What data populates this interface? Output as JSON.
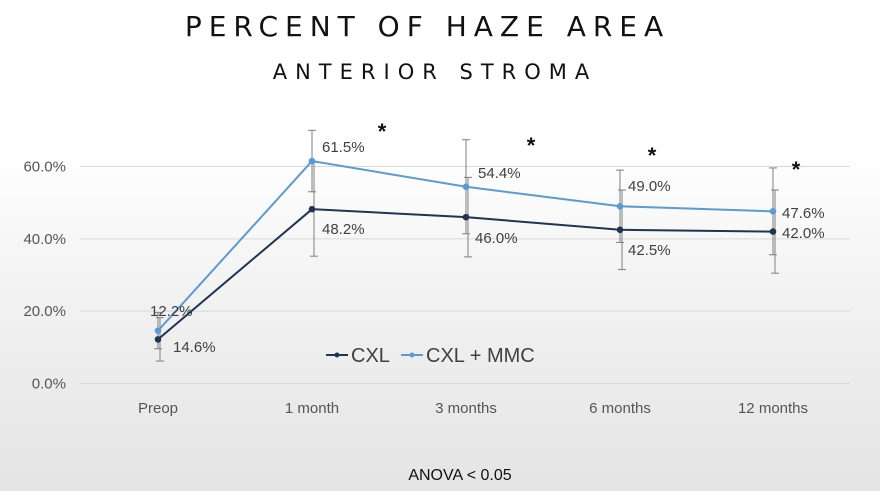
{
  "chart_data": {
    "type": "line",
    "title": "PERCENT OF HAZE AREA",
    "subtitle": "ANTERIOR STROMA",
    "categories": [
      "Preop",
      "1 month",
      "3 months",
      "6 months",
      "12 months"
    ],
    "ylim": [
      0,
      0.6
    ],
    "yticks": [
      "0.0%",
      "20.0%",
      "40.0%",
      "60.0%"
    ],
    "ytick_values": [
      0,
      0.2,
      0.4,
      0.6
    ],
    "grid": true,
    "series": [
      {
        "name": "CXL",
        "color": "#1f3552",
        "values": [
          0.122,
          0.482,
          0.46,
          0.425,
          0.42
        ],
        "labels": [
          "12.2%",
          "48.2%",
          "46.0%",
          "42.5%",
          "42.0%"
        ],
        "error": [
          0.06,
          0.13,
          0.11,
          0.11,
          0.115
        ]
      },
      {
        "name": "CXL + MMC",
        "color": "#5b9bd5",
        "values": [
          0.146,
          0.615,
          0.544,
          0.49,
          0.476
        ],
        "labels": [
          "14.6%",
          "61.5%",
          "54.4%",
          "49.0%",
          "47.6%"
        ],
        "error": [
          0.05,
          0.085,
          0.13,
          0.1,
          0.12
        ]
      }
    ],
    "annotations": [
      "*",
      "*",
      "*",
      "*"
    ],
    "legend": "center",
    "footnote": "ANOVA < 0.05"
  }
}
